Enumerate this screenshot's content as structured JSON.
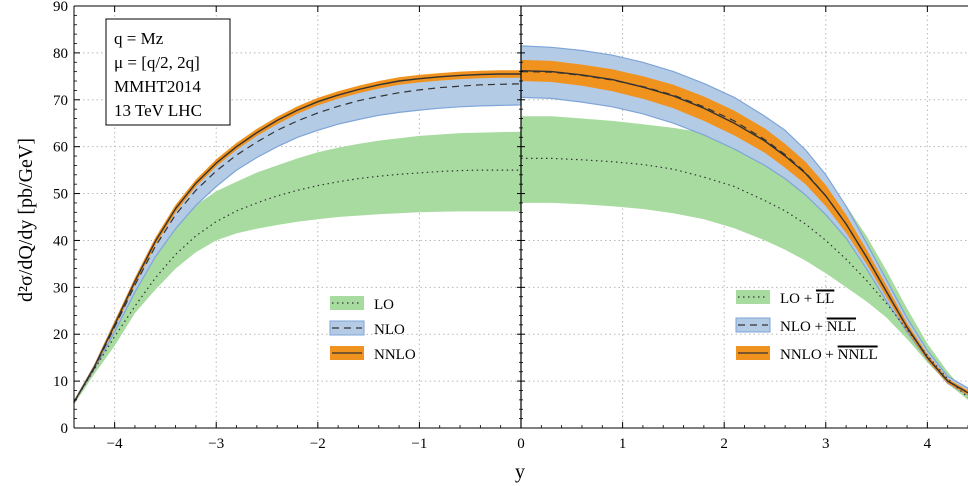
{
  "chart_data": {
    "type": "area",
    "xlabel": "y",
    "ylabel": "d²σ/dQ/dy  [pb/GeV]",
    "xlim": [
      -4.4,
      4.4
    ],
    "ylim": [
      0,
      90
    ],
    "x_ticks": [
      "−4",
      "−3",
      "−2",
      "−1",
      "0",
      "1",
      "2",
      "3",
      "4"
    ],
    "y_ticks": [
      "0",
      "10",
      "20",
      "30",
      "40",
      "50",
      "60",
      "70",
      "80",
      "90"
    ],
    "grid": true,
    "info_box": [
      "q = Mz",
      "μ = [q/2, 2q]",
      "MMHT2014",
      "13 TeV LHC"
    ],
    "colors": {
      "lo": "#a8dba0",
      "nlo": "#b4cbe6",
      "nlo_edge": "#7ea5d8",
      "nnlo": "#f0921e",
      "line": "#333333"
    },
    "left_panel": {
      "x": [
        -4.4,
        -4.2,
        -4.0,
        -3.8,
        -3.6,
        -3.4,
        -3.2,
        -3.0,
        -2.8,
        -2.6,
        -2.4,
        -2.2,
        -2.0,
        -1.8,
        -1.6,
        -1.4,
        -1.2,
        -1.0,
        -0.8,
        -0.6,
        -0.4,
        -0.2,
        0.0
      ],
      "series": [
        {
          "name": "LO",
          "center": [
            5.5,
            12.5,
            19.5,
            26.0,
            32.0,
            37.0,
            41.0,
            44.0,
            46.3,
            48.0,
            49.5,
            50.7,
            51.7,
            52.5,
            53.2,
            53.7,
            54.1,
            54.4,
            54.7,
            54.9,
            55.0,
            55.0,
            55.0
          ],
          "lower": [
            5.0,
            11.5,
            17.5,
            24.5,
            29.5,
            34.0,
            37.5,
            40.0,
            41.5,
            42.5,
            43.3,
            44.0,
            44.5,
            45.0,
            45.3,
            45.6,
            45.8,
            46.0,
            46.1,
            46.2,
            46.2,
            46.2,
            46.2
          ],
          "upper": [
            5.5,
            13.0,
            22.0,
            30.0,
            37.5,
            43.5,
            47.5,
            50.5,
            52.5,
            54.5,
            56.0,
            57.5,
            58.8,
            59.8,
            60.6,
            61.3,
            61.8,
            62.3,
            62.6,
            62.9,
            63.0,
            63.1,
            63.2
          ]
        },
        {
          "name": "NLO",
          "center": [
            5.5,
            12.8,
            21.5,
            30.5,
            38.7,
            45.5,
            50.7,
            54.8,
            58.2,
            61.0,
            63.5,
            65.5,
            67.2,
            68.6,
            69.8,
            70.7,
            71.5,
            72.1,
            72.6,
            72.9,
            73.2,
            73.3,
            73.4
          ],
          "lower": [
            5.5,
            12.5,
            20.5,
            29.0,
            36.5,
            42.5,
            47.5,
            51.5,
            55.0,
            57.7,
            60.0,
            62.0,
            63.5,
            64.8,
            65.8,
            66.7,
            67.3,
            67.8,
            68.2,
            68.5,
            68.7,
            68.8,
            68.9
          ],
          "upper": [
            5.7,
            13.3,
            22.5,
            31.5,
            40.0,
            47.0,
            52.5,
            56.7,
            60.2,
            63.0,
            65.5,
            67.5,
            69.2,
            70.7,
            71.9,
            72.9,
            73.7,
            74.3,
            74.8,
            75.2,
            75.5,
            75.7,
            75.8
          ]
        },
        {
          "name": "NNLO",
          "center": [
            5.5,
            13.0,
            22.0,
            31.3,
            39.8,
            46.8,
            52.2,
            56.5,
            60.0,
            63.0,
            65.6,
            67.8,
            69.6,
            71.0,
            72.2,
            73.2,
            74.0,
            74.5,
            74.9,
            75.2,
            75.4,
            75.5,
            75.5
          ],
          "lower": [
            5.2,
            12.5,
            21.2,
            30.5,
            39.0,
            46.0,
            51.5,
            55.8,
            59.3,
            62.3,
            64.8,
            67.0,
            68.8,
            70.2,
            71.4,
            72.4,
            73.2,
            73.7,
            74.1,
            74.4,
            74.6,
            74.7,
            74.7
          ],
          "upper": [
            5.8,
            13.5,
            22.8,
            32.1,
            40.6,
            47.6,
            53.0,
            57.3,
            60.8,
            63.8,
            66.4,
            68.6,
            70.4,
            71.8,
            73.0,
            74.0,
            74.8,
            75.3,
            75.7,
            76.0,
            76.2,
            76.3,
            76.3
          ]
        }
      ]
    },
    "right_panel": {
      "x": [
        0.0,
        0.3,
        0.6,
        0.9,
        1.2,
        1.5,
        1.8,
        2.1,
        2.4,
        2.6,
        2.8,
        3.0,
        3.2,
        3.4,
        3.6,
        3.8,
        4.0,
        4.2,
        4.4
      ],
      "series": [
        {
          "name": "LO + LL",
          "center": [
            57.5,
            57.5,
            57.2,
            56.8,
            56.2,
            55.2,
            53.5,
            51.5,
            48.5,
            46.3,
            43.5,
            40.0,
            36.0,
            31.5,
            26.5,
            21.0,
            15.5,
            10.5,
            6.5
          ],
          "lower": [
            48.0,
            48.0,
            47.7,
            47.3,
            46.7,
            45.8,
            44.5,
            42.6,
            40.0,
            38.0,
            35.7,
            33.0,
            30.0,
            27.0,
            23.5,
            19.0,
            14.0,
            9.5,
            6.0
          ],
          "upper": [
            66.5,
            66.5,
            66.0,
            65.5,
            64.8,
            64.0,
            63.0,
            61.6,
            59.7,
            58.0,
            55.5,
            52.0,
            47.5,
            41.0,
            33.5,
            25.5,
            18.0,
            12.0,
            7.0
          ]
        },
        {
          "name": "NLO + NLL",
          "center": [
            76.0,
            75.9,
            75.2,
            74.2,
            72.8,
            71.0,
            68.5,
            65.5,
            61.5,
            58.3,
            54.5,
            49.5,
            43.5,
            36.5,
            29.0,
            21.5,
            15.0,
            10.0,
            7.5
          ],
          "lower": [
            70.5,
            70.3,
            69.5,
            68.5,
            67.0,
            65.0,
            62.5,
            59.5,
            56.0,
            53.2,
            49.7,
            45.5,
            40.5,
            34.0,
            27.0,
            20.5,
            14.5,
            9.5,
            7.0
          ],
          "upper": [
            81.5,
            81.2,
            80.5,
            79.5,
            78.0,
            76.0,
            73.5,
            70.5,
            66.5,
            63.5,
            59.3,
            54.0,
            47.3,
            39.5,
            31.5,
            23.5,
            16.5,
            11.0,
            8.5
          ]
        },
        {
          "name": "NNLO + NNLL",
          "center": [
            76.2,
            76.0,
            75.3,
            74.3,
            72.7,
            70.8,
            68.2,
            65.0,
            61.2,
            58.0,
            54.3,
            49.5,
            43.5,
            36.5,
            29.0,
            21.5,
            15.0,
            10.0,
            7.5
          ],
          "lower": [
            74.0,
            73.8,
            73.0,
            71.8,
            70.2,
            68.2,
            65.5,
            62.4,
            58.7,
            55.5,
            52.0,
            47.3,
            41.6,
            35.0,
            27.8,
            20.7,
            14.4,
            9.5,
            7.0
          ],
          "upper": [
            78.5,
            78.3,
            77.5,
            76.5,
            75.0,
            73.2,
            70.7,
            67.7,
            63.9,
            60.6,
            56.8,
            51.8,
            45.5,
            38.1,
            30.3,
            22.4,
            15.7,
            10.5,
            8.0
          ]
        }
      ]
    },
    "legend_left": [
      "LO",
      "NLO",
      "NNLO"
    ],
    "legend_right": [
      {
        "pre": "LO + ",
        "over": "LL"
      },
      {
        "pre": "NLO + ",
        "over": "NLL"
      },
      {
        "pre": "NNLO + ",
        "over": "NNLL"
      }
    ]
  }
}
